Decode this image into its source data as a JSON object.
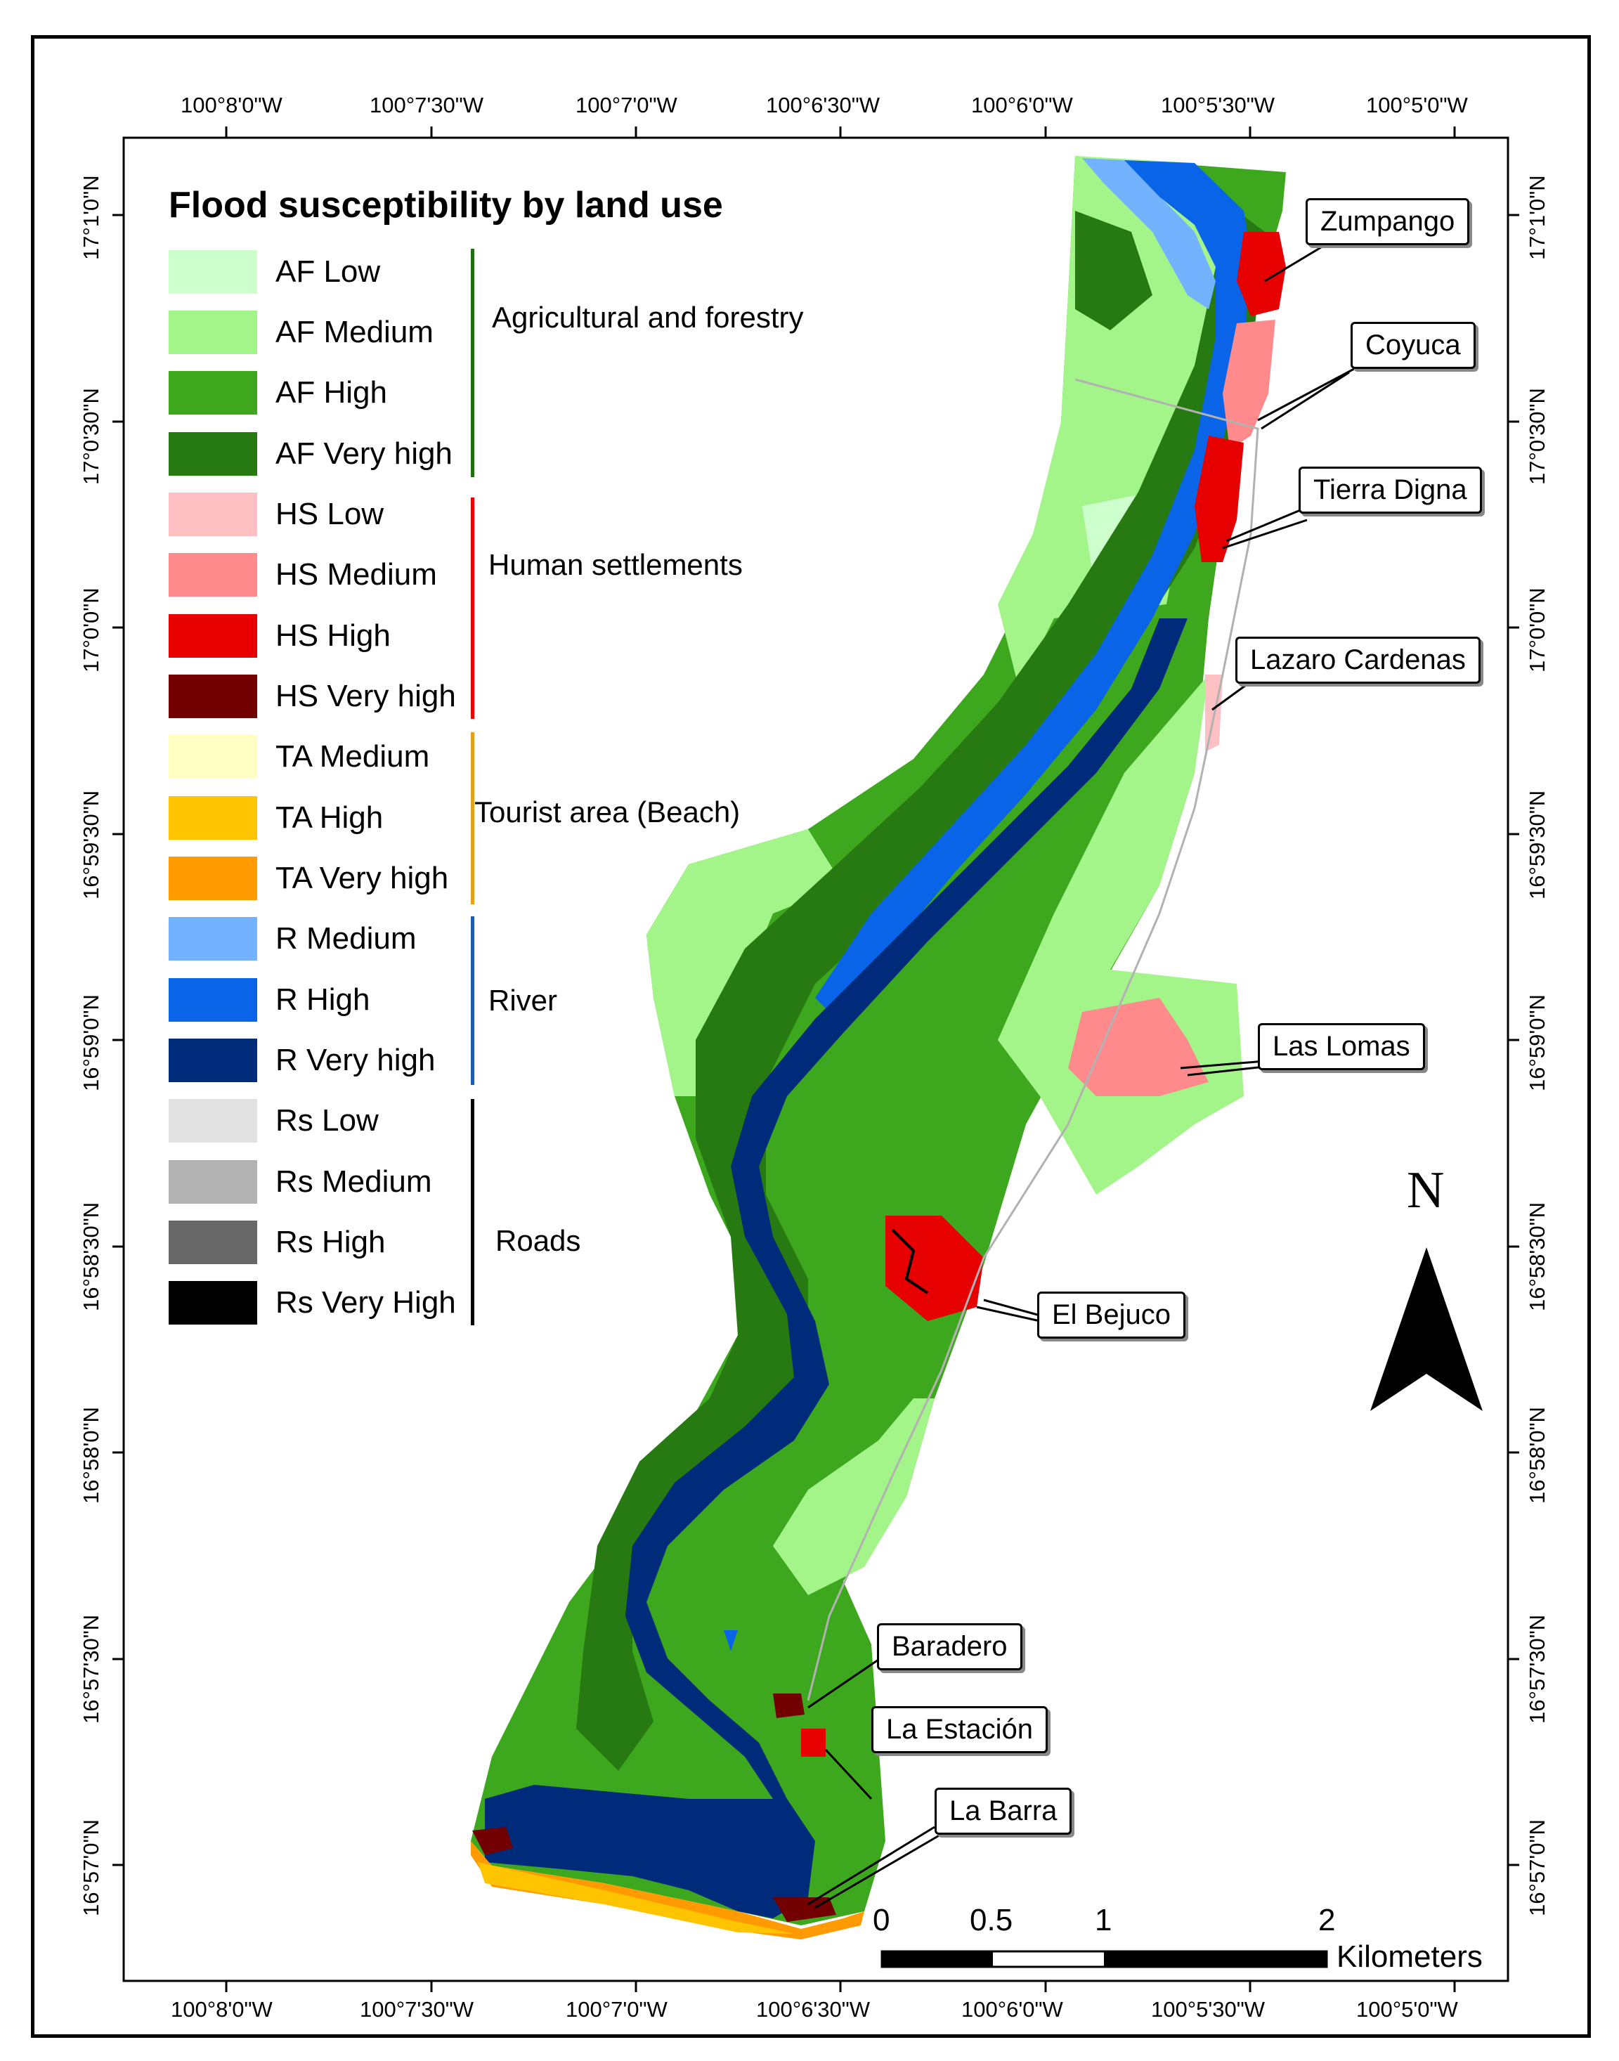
{
  "legend": {
    "title": "Flood susceptibility by land use",
    "items": [
      {
        "label": "AF Low",
        "color": "#ccffcc"
      },
      {
        "label": "AF Medium",
        "color": "#a3f58a"
      },
      {
        "label": "AF High",
        "color": "#3da81e"
      },
      {
        "label": "AF Very high",
        "color": "#277a12"
      },
      {
        "label": "HS Low",
        "color": "#ffc0c4"
      },
      {
        "label": "HS Medium",
        "color": "#ff8a8c"
      },
      {
        "label": "HS High",
        "color": "#e60000"
      },
      {
        "label": "HS Very high",
        "color": "#730000"
      },
      {
        "label": "TA Medium",
        "color": "#ffffc4"
      },
      {
        "label": "TA High",
        "color": "#ffc400"
      },
      {
        "label": "TA Very high",
        "color": "#ff9a00"
      },
      {
        "label": "R Medium",
        "color": "#73b2ff"
      },
      {
        "label": "R High",
        "color": "#0a64e8"
      },
      {
        "label": "R Very high",
        "color": "#002a7a"
      },
      {
        "label": "Rs Low",
        "color": "#e1e1e1"
      },
      {
        "label": "Rs Medium",
        "color": "#b2b2b2"
      },
      {
        "label": "Rs High",
        "color": "#686868"
      },
      {
        "label": "Rs Very High",
        "color": "#000000"
      }
    ],
    "groups": [
      {
        "label": "Agricultural and forestry",
        "color": "#1f6e12"
      },
      {
        "label": "Human settlements",
        "color": "#e60000"
      },
      {
        "label": "Tourist area (Beach)",
        "color": "#e3a21a"
      },
      {
        "label": "River",
        "color": "#1f5bb5"
      },
      {
        "label": "Roads",
        "color": "#000000"
      }
    ]
  },
  "coordinates": {
    "longitude_top": [
      "100°8'0\"W",
      "100°7'30\"W",
      "100°7'0\"W",
      "100°6'30\"W",
      "100°6'0\"W",
      "100°5'30\"W",
      "100°5'0\"W"
    ],
    "longitude_bottom": [
      "100°8'0\"W",
      "100°7'30\"W",
      "100°7'0\"W",
      "100°6'30\"W",
      "100°6'0\"W",
      "100°5'30\"W",
      "100°5'0\"W"
    ],
    "latitude_left": [
      "17°1'0\"N",
      "17°0'30\"N",
      "17°0'0\"N",
      "16°59'30\"N",
      "16°59'0\"N",
      "16°58'30\"N",
      "16°58'0\"N",
      "16°57'30\"N",
      "16°57'0\"N"
    ],
    "latitude_right": [
      "17°1'0\"N",
      "17°0'30\"N",
      "17°0'0\"N",
      "16°59'30\"N",
      "16°59'0\"N",
      "16°58'30\"N",
      "16°58'0\"N",
      "16°57'30\"N",
      "16°57'0\"N"
    ]
  },
  "places": [
    {
      "name": "Zumpango"
    },
    {
      "name": "Coyuca"
    },
    {
      "name": "Tierra Digna"
    },
    {
      "name": "Lazaro Cardenas"
    },
    {
      "name": "Las Lomas"
    },
    {
      "name": "El Bejuco"
    },
    {
      "name": "Baradero"
    },
    {
      "name": "La Estación"
    },
    {
      "name": "La Barra"
    }
  ],
  "north_arrow": {
    "label": "N"
  },
  "scale_bar": {
    "ticks": [
      "0",
      "0.5",
      "1",
      "2"
    ],
    "unit": "Kilometers"
  }
}
